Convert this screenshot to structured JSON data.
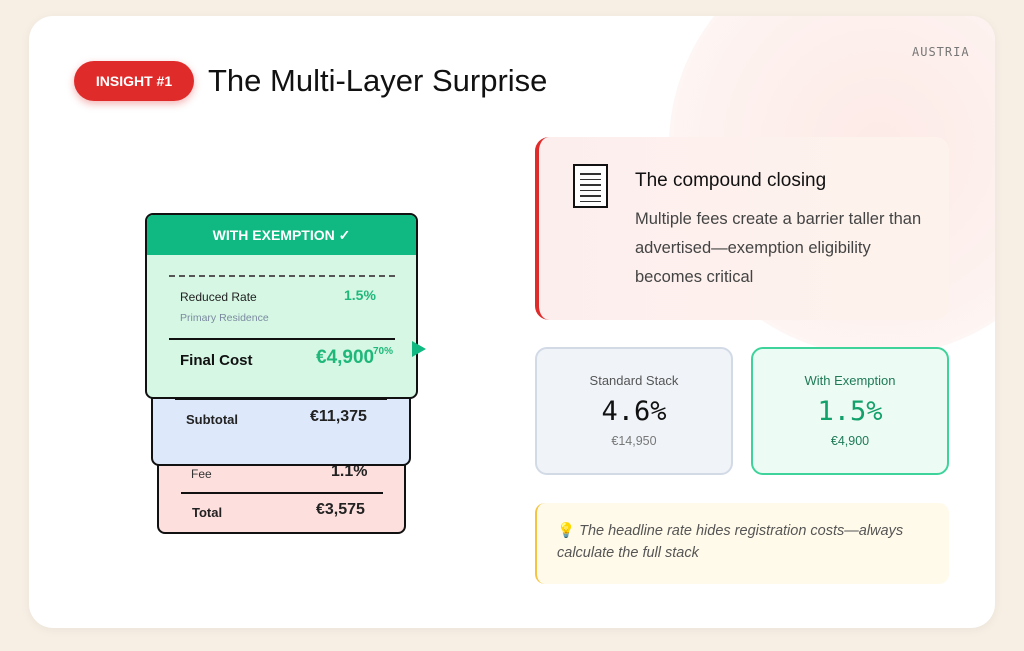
{
  "country": "AUSTRIA",
  "badge": "INSIGHT #1",
  "title": "The Multi-Layer Surprise",
  "receipts": {
    "exemption": {
      "header": "WITH EXEMPTION ✓",
      "rate_label": "Reduced Rate",
      "rate_value": "1.5%",
      "sub_label": "Primary Residence",
      "final_label": "Final Cost",
      "final_value": "€4,900",
      "overlay_pct": "70%"
    },
    "middle": {
      "label": "Subtotal",
      "value": "€11,375"
    },
    "bottom": {
      "fee_label": "Fee",
      "fee_value": "1.1%",
      "total_label": "Total",
      "total_value": "€3,575"
    }
  },
  "insight": {
    "icon": "document-icon",
    "heading": "The compound closing",
    "body": "Multiple fees create a barrier taller than advertised—exemption eligibility becomes critical"
  },
  "stats": [
    {
      "label": "Standard Stack",
      "value": "4.6%",
      "amount": "€14,950"
    },
    {
      "label": "With Exemption",
      "value": "1.5%",
      "amount": "€4,900"
    }
  ],
  "tip": {
    "icon": "lightbulb-icon",
    "text": "The headline rate hides registration costs—always calculate the full stack"
  },
  "colors": {
    "accent_red": "#e02b2b",
    "accent_green": "#10b981"
  }
}
